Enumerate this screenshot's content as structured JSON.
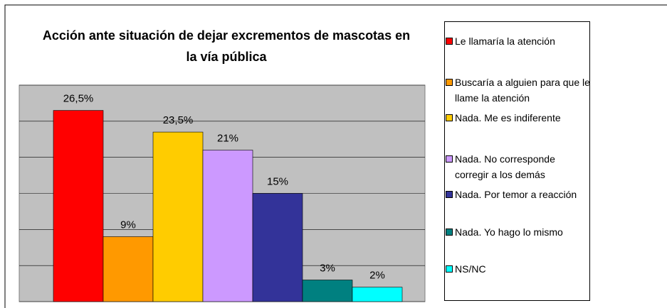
{
  "chart_data": {
    "type": "bar",
    "title": "Acción ante situación de dejar excrementos de mascotas en la vía pública",
    "categories": [
      null
    ],
    "series": [
      {
        "name": "Le llamaría la atención",
        "color": "#ff0000",
        "values": [
          26.5
        ],
        "value_labels": [
          "26,5%"
        ]
      },
      {
        "name": "Buscaría a alguien para que le llame la atención",
        "color": "#ff9900",
        "values": [
          9
        ],
        "value_labels": [
          "9%"
        ]
      },
      {
        "name": "Nada. Me es indiferente",
        "color": "#ffcc00",
        "values": [
          23.5
        ],
        "value_labels": [
          "23,5%"
        ]
      },
      {
        "name": "Nada. No corresponde corregir a los demás",
        "color": "#cc99ff",
        "values": [
          21
        ],
        "value_labels": [
          "21%"
        ]
      },
      {
        "name": "Nada. Por temor a reacción",
        "color": "#333399",
        "values": [
          15
        ],
        "value_labels": [
          "15%"
        ]
      },
      {
        "name": "Nada. Yo hago lo mismo",
        "color": "#008080",
        "values": [
          3
        ],
        "value_labels": [
          "3%"
        ]
      },
      {
        "name": "NS/NC",
        "color": "#00ffff",
        "values": [
          2
        ],
        "value_labels": [
          "2%"
        ]
      }
    ],
    "ylim": [
      0,
      30
    ],
    "yticks": [
      0,
      5,
      10,
      15,
      20,
      25,
      30
    ],
    "grid": true,
    "legend": "right"
  }
}
